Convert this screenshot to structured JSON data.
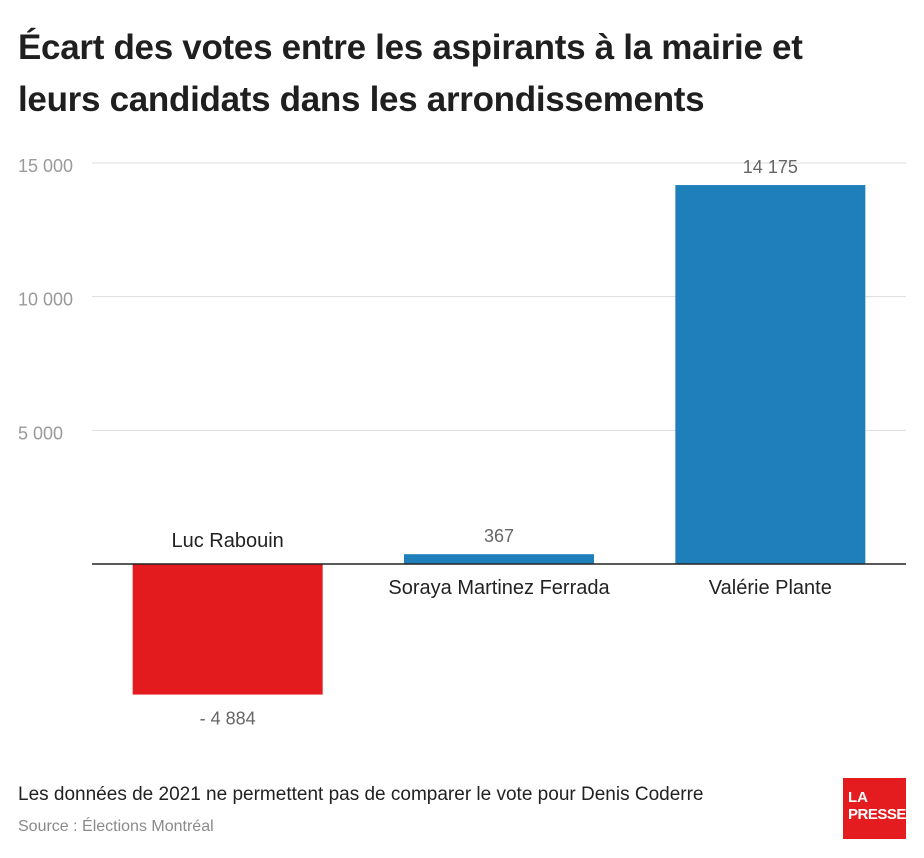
{
  "title": {
    "line1": "Écart des votes entre les aspirants à la mairie et",
    "line2": "leurs candidats dans les arrondissements"
  },
  "footer": {
    "note": "Les données de 2021 ne permettent pas de comparer le vote pour Denis Coderre",
    "source": "Source : Élections Montréal"
  },
  "logo": {
    "line1": "LA",
    "line2": "PRESSE"
  },
  "chart_data": {
    "type": "bar",
    "title": "Écart des votes entre les aspirants à la mairie et leurs candidats dans les arrondissements",
    "xlabel": "",
    "ylabel": "",
    "categories": [
      "Luc Rabouin",
      "Soraya Martinez Ferrada",
      "Valérie Plante"
    ],
    "values": [
      -4884,
      367,
      14175
    ],
    "value_labels": [
      "- 4 884",
      "367",
      "14 175"
    ],
    "colors": [
      "#e31b1e",
      "#1f7fba",
      "#1f7fba"
    ],
    "yticks": [
      5000,
      10000,
      15000
    ],
    "ytick_labels": [
      "5 000",
      "10 000",
      "15 000"
    ],
    "ylim": [
      -4884,
      15000
    ],
    "grid": true
  }
}
